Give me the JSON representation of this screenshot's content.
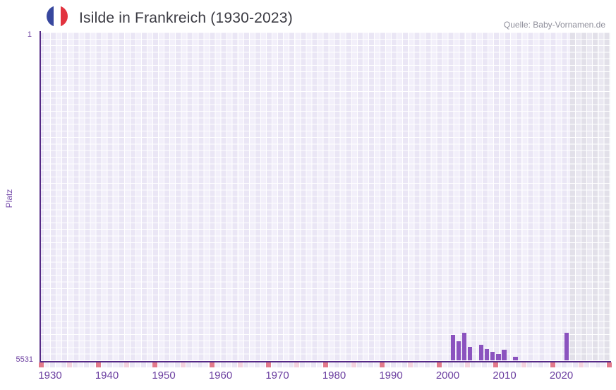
{
  "header": {
    "title": "Isilde in Frankreich (1930-2023)",
    "source": "Quelle: Baby-Vornamen.de",
    "flag": "france-flag-icon"
  },
  "y_axis": {
    "label": "Platz",
    "top_tick": "1",
    "bottom_tick": "5531"
  },
  "x_axis": {
    "start_year": 1930,
    "end_year": 2030,
    "decade_labels": [
      "1930",
      "1940",
      "1950",
      "1960",
      "1970",
      "1980",
      "1990",
      "2000",
      "2010",
      "2020"
    ]
  },
  "chart_data": {
    "type": "bar",
    "title": "Isilde in Frankreich (1930-2023)",
    "ylabel": "Platz",
    "ylim": [
      1,
      5531
    ],
    "y_inverted": true,
    "x_range": [
      1930,
      2030
    ],
    "grid": true,
    "points": [
      {
        "year": 2002,
        "rank": 5100
      },
      {
        "year": 2003,
        "rank": 5200
      },
      {
        "year": 2004,
        "rank": 5060
      },
      {
        "year": 2005,
        "rank": 5295
      },
      {
        "year": 2007,
        "rank": 5265
      },
      {
        "year": 2008,
        "rank": 5335
      },
      {
        "year": 2009,
        "rank": 5385
      },
      {
        "year": 2010,
        "rank": 5415
      },
      {
        "year": 2011,
        "rank": 5350
      },
      {
        "year": 2013,
        "rank": 5470
      },
      {
        "year": 2022,
        "rank": 5055
      }
    ],
    "no_data_region": {
      "from_year": 2023,
      "to_year": 2030
    }
  },
  "colors": {
    "bar": "#8b53bf",
    "axis": "#552a86",
    "decade_tick": "#e2798b",
    "half_decade_tick": "#f4d2de",
    "year_tick_even": "#eae6f4",
    "year_tick_odd": "#f3f0fa",
    "grid_cell_dark": "#eae6f5",
    "grid_cell_light": "#f2effa",
    "nodata_cell_dark": "#e2e0e9",
    "nodata_cell_light": "#eae8f1",
    "label_purple": "#6b3fa0",
    "title_text": "#3a3a42",
    "source_text": "#8f8f9b"
  }
}
